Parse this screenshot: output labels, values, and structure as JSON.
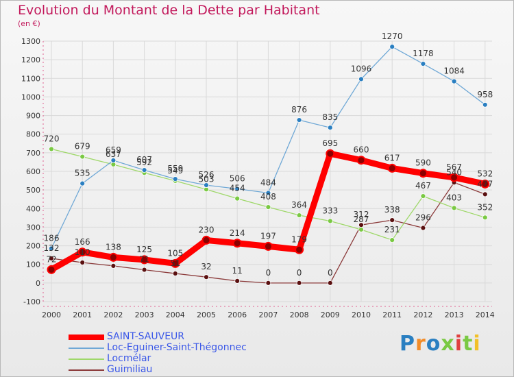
{
  "title": "Evolution du Montant de la Dette par Habitant",
  "subtitle": "(en €)",
  "logo_text": "Proxiti",
  "chart_data": {
    "type": "line",
    "x": [
      2000,
      2001,
      2002,
      2003,
      2004,
      2005,
      2006,
      2007,
      2008,
      2009,
      2010,
      2011,
      2012,
      2013,
      2014
    ],
    "ylim": [
      -100,
      1300
    ],
    "yticks": [
      -100,
      0,
      100,
      200,
      300,
      400,
      500,
      600,
      700,
      800,
      900,
      1000,
      1100,
      1200,
      1300
    ],
    "grid": true,
    "legend_position": "bottom-left",
    "series": [
      {
        "name": "SAINT-SAUVEUR",
        "color": "#ff0000",
        "marker_color": "#8b0000",
        "values": [
          72,
          166,
          138,
          125,
          105,
          230,
          214,
          197,
          179,
          695,
          660,
          617,
          590,
          567,
          532
        ],
        "labels": [
          "72",
          "166",
          "138",
          "125",
          "105",
          "230",
          "214",
          "197",
          "179",
          "695",
          "660",
          "617",
          "590",
          "567",
          "532"
        ]
      },
      {
        "name": "Loc-Eguiner-Saint-Thégonnec",
        "color": "#6fa8d6",
        "marker_color": "#2a7fc1",
        "values": [
          186,
          535,
          659,
          607,
          559,
          526,
          506,
          484,
          876,
          835,
          1096,
          1270,
          1178,
          1084,
          958
        ],
        "labels": [
          "186",
          "535",
          "659",
          "607",
          "559",
          "526",
          "506",
          "484",
          "876",
          "835",
          "1096",
          "1270",
          "1178",
          "1084",
          "958"
        ]
      },
      {
        "name": "Locmélar",
        "color": "#9fd86a",
        "marker_color": "#7ac943",
        "values": [
          720,
          679,
          637,
          592,
          549,
          503,
          454,
          408,
          364,
          333,
          287,
          231,
          467,
          403,
          352
        ],
        "labels": [
          "720",
          "679",
          "637",
          "592",
          "549",
          "503",
          "454",
          "408",
          "364",
          "333",
          "287",
          "231",
          "467",
          "403",
          "352"
        ]
      },
      {
        "name": "Guimiliau",
        "color": "#8b3a3a",
        "marker_color": "#5a1010",
        "values": [
          132,
          110,
          92,
          71,
          51,
          32,
          11,
          0,
          0,
          0,
          312,
          338,
          296,
          540,
          477
        ],
        "labels": [
          "132",
          "110",
          "",
          "71",
          "51",
          "32",
          "11",
          "0",
          "0",
          "0",
          "312",
          "338",
          "296",
          "540",
          "477"
        ]
      }
    ]
  }
}
